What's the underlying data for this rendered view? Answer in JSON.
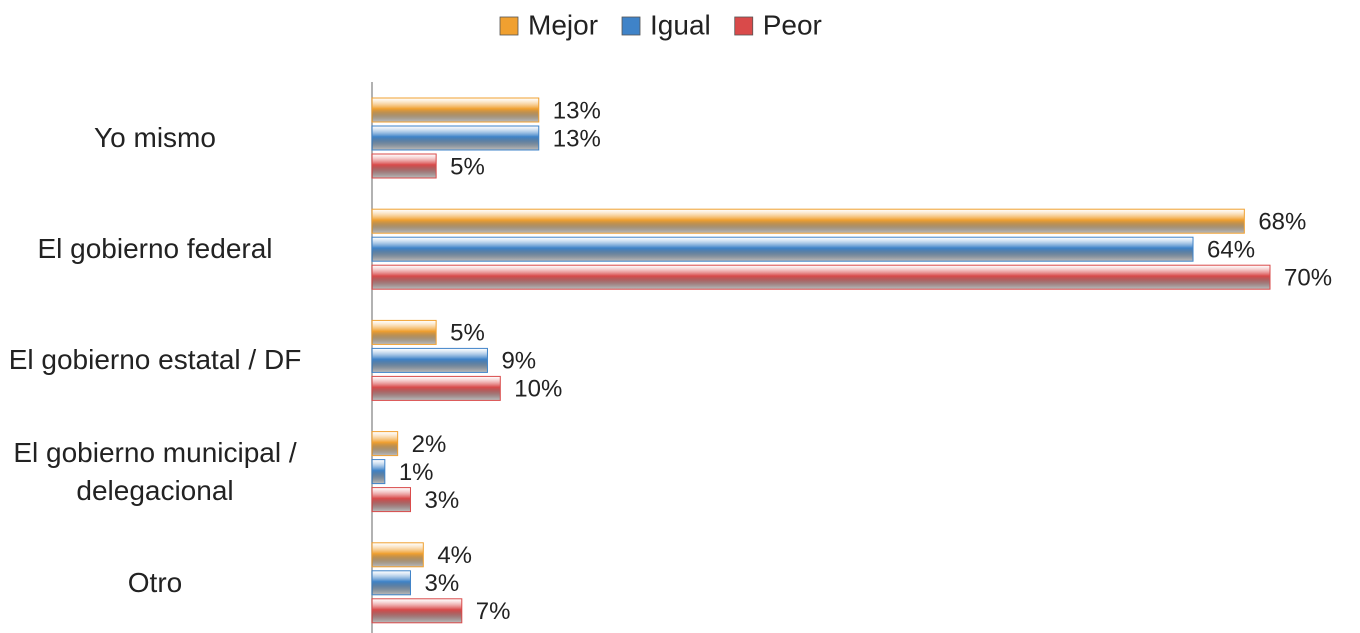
{
  "chart_data": {
    "type": "hbar",
    "categories": [
      "Yo mismo",
      "El gobierno federal",
      "El gobierno estatal / DF",
      "El gobierno municipal /\ndelegacional",
      "Otro"
    ],
    "series": [
      {
        "name": "Mejor",
        "color": "#f0a030",
        "values": [
          13,
          68,
          5,
          2,
          4
        ],
        "value_labels": [
          "13%",
          "68%",
          "5%",
          "2%",
          "4%"
        ]
      },
      {
        "name": "Igual",
        "color": "#3f83c8",
        "values": [
          13,
          64,
          9,
          1,
          3
        ],
        "value_labels": [
          "13%",
          "64%",
          "9%",
          "1%",
          "3%"
        ]
      },
      {
        "name": "Peor",
        "color": "#d94a4a",
        "values": [
          5,
          70,
          10,
          3,
          7
        ],
        "value_labels": [
          "5%",
          "70%",
          "10%",
          "3%",
          "7%"
        ]
      }
    ],
    "xlim": [
      0,
      70
    ],
    "legend": "top"
  }
}
